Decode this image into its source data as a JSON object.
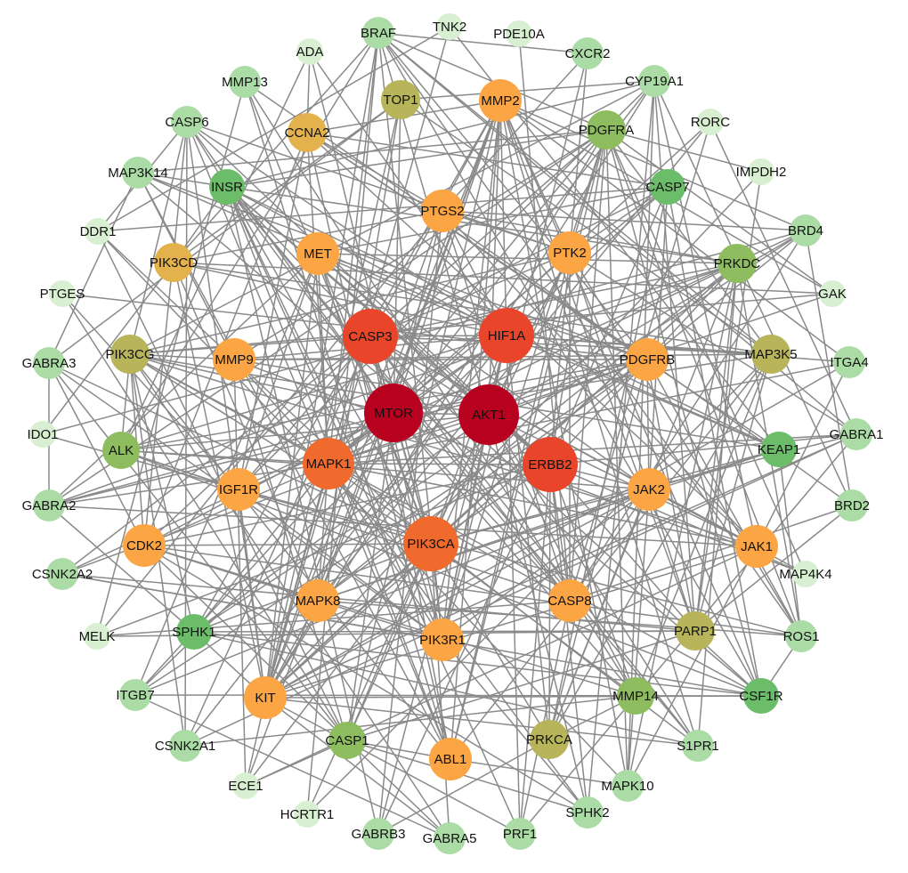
{
  "nodes": [
    {
      "label": "MTOR"
    },
    {
      "label": "AKT1"
    },
    {
      "label": "CASP3"
    },
    {
      "label": "HIF1A"
    },
    {
      "label": "ERBB2"
    },
    {
      "label": "MAPK1"
    },
    {
      "label": "PIK3CA"
    },
    {
      "label": "PTGS2"
    },
    {
      "label": "MET"
    },
    {
      "label": "PTK2"
    },
    {
      "label": "MMP9"
    },
    {
      "label": "PDGFRB"
    },
    {
      "label": "IGF1R"
    },
    {
      "label": "JAK2"
    },
    {
      "label": "CDK2"
    },
    {
      "label": "JAK1"
    },
    {
      "label": "MAPK8"
    },
    {
      "label": "CASP8"
    },
    {
      "label": "PIK3R1"
    },
    {
      "label": "KIT"
    },
    {
      "label": "ABL1"
    },
    {
      "label": "MMP2"
    },
    {
      "label": "CCNA2"
    },
    {
      "label": "PIK3CD"
    },
    {
      "label": "TOP1"
    },
    {
      "label": "PIK3CG"
    },
    {
      "label": "MAP3K5"
    },
    {
      "label": "PARP1"
    },
    {
      "label": "PRKCA"
    },
    {
      "label": "PDGFRA"
    },
    {
      "label": "PRKDC"
    },
    {
      "label": "ALK"
    },
    {
      "label": "CASP1"
    },
    {
      "label": "MMP14"
    },
    {
      "label": "INSR"
    },
    {
      "label": "CASP7"
    },
    {
      "label": "KEAP1"
    },
    {
      "label": "SPHK1"
    },
    {
      "label": "CSF1R"
    },
    {
      "label": "BRAF"
    },
    {
      "label": "CYP19A1"
    },
    {
      "label": "MMP13"
    },
    {
      "label": "MAP3K14"
    },
    {
      "label": "BRD4"
    },
    {
      "label": "GABRA3"
    },
    {
      "label": "ITGA4"
    },
    {
      "label": "GABRA1"
    },
    {
      "label": "BRD2"
    },
    {
      "label": "GABRA2"
    },
    {
      "label": "CSNK2A2"
    },
    {
      "label": "ITGB7"
    },
    {
      "label": "CSNK2A1"
    },
    {
      "label": "S1PR1"
    },
    {
      "label": "SPHK2"
    },
    {
      "label": "MAPK10"
    },
    {
      "label": "PRF1"
    },
    {
      "label": "GABRB3"
    },
    {
      "label": "GABRA5"
    },
    {
      "label": "ROS1"
    },
    {
      "label": "CXCR2"
    },
    {
      "label": "CASP6"
    },
    {
      "label": "ADA"
    },
    {
      "label": "TNK2"
    },
    {
      "label": "PDE10A"
    },
    {
      "label": "RORC"
    },
    {
      "label": "IMPDH2"
    },
    {
      "label": "DDR1"
    },
    {
      "label": "PTGES"
    },
    {
      "label": "GAK"
    },
    {
      "label": "IDO1"
    },
    {
      "label": "MAP4K4"
    },
    {
      "label": "MELK"
    },
    {
      "label": "ECE1"
    },
    {
      "label": "HCRTR1"
    }
  ]
}
